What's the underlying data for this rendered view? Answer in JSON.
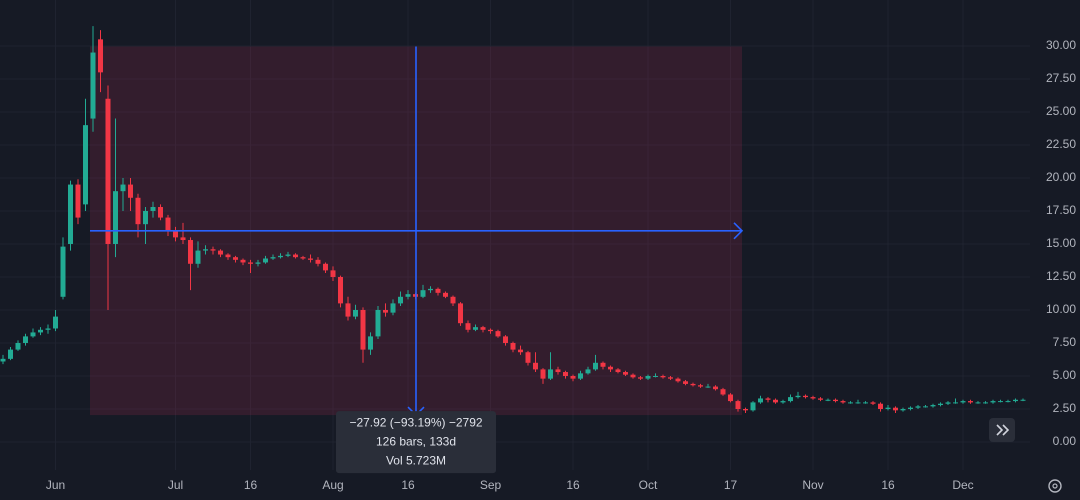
{
  "chart_data": {
    "type": "candlestick",
    "up_color": "#22ab94",
    "down_color": "#f23645",
    "ylim": [
      -2.12,
      33.48
    ],
    "yticks": [
      {
        "value": 0,
        "label": "0.00"
      },
      {
        "value": 2.5,
        "label": "2.50"
      },
      {
        "value": 5,
        "label": "5.00"
      },
      {
        "value": 7.5,
        "label": "7.50"
      },
      {
        "value": 10,
        "label": "10.00"
      },
      {
        "value": 12.5,
        "label": "12.50"
      },
      {
        "value": 15,
        "label": "15.00"
      },
      {
        "value": 17.5,
        "label": "17.50"
      },
      {
        "value": 20,
        "label": "20.00"
      },
      {
        "value": 22.5,
        "label": "22.50"
      },
      {
        "value": 25,
        "label": "25.00"
      },
      {
        "value": 27.5,
        "label": "27.50"
      },
      {
        "value": 30,
        "label": "30.00"
      }
    ],
    "grid": true,
    "categories": [
      null,
      null,
      null,
      null,
      null,
      null,
      null,
      "Jun",
      null,
      null,
      null,
      null,
      null,
      null,
      null,
      null,
      null,
      null,
      null,
      null,
      null,
      null,
      null,
      "Jul",
      null,
      null,
      null,
      null,
      null,
      null,
      null,
      null,
      null,
      "16",
      null,
      null,
      null,
      null,
      null,
      null,
      null,
      null,
      null,
      null,
      "Aug",
      null,
      null,
      null,
      null,
      null,
      null,
      null,
      null,
      null,
      "16",
      null,
      null,
      null,
      null,
      null,
      null,
      null,
      null,
      null,
      null,
      "Sep",
      null,
      null,
      null,
      null,
      null,
      null,
      null,
      null,
      null,
      null,
      "16",
      null,
      null,
      null,
      null,
      null,
      null,
      null,
      null,
      null,
      "Oct",
      null,
      null,
      null,
      null,
      null,
      null,
      null,
      null,
      null,
      null,
      "17",
      null,
      null,
      null,
      null,
      null,
      null,
      null,
      null,
      null,
      null,
      "Nov",
      null,
      null,
      null,
      null,
      null,
      null,
      null,
      null,
      null,
      "16",
      null,
      null,
      null,
      null,
      null,
      null,
      null,
      null,
      null,
      "Dec",
      null,
      null,
      null,
      null,
      null,
      null,
      null,
      null
    ],
    "series": [
      {
        "values": [
          [
            6.1,
            6.6,
            5.9,
            6.3
          ],
          [
            6.3,
            7.2,
            6.2,
            7.0
          ],
          [
            7.0,
            7.7,
            6.9,
            7.5
          ],
          [
            7.5,
            8.2,
            7.3,
            8.0
          ],
          [
            8.0,
            8.6,
            7.9,
            8.3
          ],
          [
            8.3,
            8.7,
            8.1,
            8.5
          ],
          [
            8.5,
            8.9,
            8.2,
            8.6
          ],
          [
            8.6,
            10.0,
            8.4,
            9.5
          ],
          [
            11.0,
            15.5,
            10.8,
            14.8
          ],
          [
            15.0,
            19.8,
            14.5,
            19.5
          ],
          [
            19.5,
            19.9,
            16.5,
            17.0
          ],
          [
            18.0,
            26.0,
            17.5,
            24.0
          ],
          [
            24.5,
            31.5,
            23.5,
            29.5
          ],
          [
            30.5,
            31.2,
            26.5,
            28.0
          ],
          [
            26.0,
            27.0,
            10.0,
            15.0
          ],
          [
            15.0,
            24.5,
            14.0,
            19.0
          ],
          [
            19.0,
            20.0,
            17.5,
            19.5
          ],
          [
            19.5,
            20.0,
            17.5,
            18.5
          ],
          [
            18.5,
            18.8,
            15.5,
            16.5
          ],
          [
            16.5,
            17.8,
            15.0,
            17.5
          ],
          [
            17.5,
            18.2,
            17.0,
            17.8
          ],
          [
            17.8,
            18.0,
            16.8,
            17.0
          ],
          [
            17.0,
            17.2,
            15.6,
            16.0
          ],
          [
            16.0,
            16.3,
            15.2,
            15.5
          ],
          [
            15.5,
            16.6,
            15.0,
            15.3
          ],
          [
            15.3,
            15.5,
            11.5,
            13.5
          ],
          [
            13.5,
            15.2,
            13.2,
            14.5
          ],
          [
            14.5,
            14.9,
            14.2,
            14.6
          ],
          [
            14.6,
            14.8,
            14.2,
            14.5
          ],
          [
            14.5,
            14.6,
            14.0,
            14.2
          ],
          [
            14.2,
            14.3,
            13.8,
            14.0
          ],
          [
            14.0,
            14.1,
            13.6,
            13.8
          ],
          [
            13.8,
            13.9,
            13.4,
            13.6
          ],
          [
            13.6,
            13.8,
            12.8,
            13.5
          ],
          [
            13.5,
            13.8,
            13.3,
            13.6
          ],
          [
            13.6,
            14.1,
            13.5,
            13.9
          ],
          [
            13.9,
            14.2,
            13.8,
            14.0
          ],
          [
            14.0,
            14.3,
            13.9,
            14.1
          ],
          [
            14.1,
            14.4,
            14.0,
            14.2
          ],
          [
            14.2,
            14.3,
            13.9,
            14.0
          ],
          [
            14.0,
            14.1,
            13.8,
            13.9
          ],
          [
            13.9,
            14.2,
            13.6,
            13.8
          ],
          [
            13.8,
            14.0,
            13.3,
            13.5
          ],
          [
            13.5,
            13.6,
            12.8,
            13.0
          ],
          [
            13.0,
            13.3,
            12.2,
            12.5
          ],
          [
            12.5,
            12.6,
            10.2,
            10.5
          ],
          [
            10.5,
            11.0,
            9.2,
            9.5
          ],
          [
            9.5,
            10.4,
            9.3,
            10.0
          ],
          [
            10.0,
            10.2,
            6.0,
            7.0
          ],
          [
            7.0,
            8.3,
            6.6,
            8.0
          ],
          [
            8.0,
            10.3,
            7.8,
            10.0
          ],
          [
            10.0,
            10.5,
            9.5,
            9.8
          ],
          [
            9.8,
            10.8,
            9.6,
            10.5
          ],
          [
            10.5,
            11.4,
            10.3,
            11.0
          ],
          [
            11.0,
            11.5,
            10.8,
            11.2
          ],
          [
            11.2,
            11.3,
            10.8,
            11.0
          ],
          [
            11.0,
            11.9,
            10.9,
            11.5
          ],
          [
            11.5,
            11.8,
            11.3,
            11.6
          ],
          [
            11.6,
            11.7,
            11.1,
            11.3
          ],
          [
            11.3,
            11.4,
            10.9,
            11.0
          ],
          [
            11.0,
            11.1,
            10.3,
            10.5
          ],
          [
            10.5,
            10.6,
            8.8,
            9.0
          ],
          [
            9.0,
            9.2,
            8.3,
            8.5
          ],
          [
            8.5,
            8.9,
            8.4,
            8.7
          ],
          [
            8.7,
            8.8,
            8.3,
            8.5
          ],
          [
            8.5,
            8.6,
            8.2,
            8.4
          ],
          [
            8.4,
            8.5,
            7.9,
            8.0
          ],
          [
            8.0,
            8.1,
            7.3,
            7.5
          ],
          [
            7.5,
            7.6,
            6.8,
            7.0
          ],
          [
            7.0,
            7.3,
            6.6,
            6.8
          ],
          [
            6.8,
            6.9,
            5.8,
            6.0
          ],
          [
            6.0,
            6.8,
            5.3,
            5.5
          ],
          [
            5.5,
            5.6,
            4.4,
            4.8
          ],
          [
            4.8,
            6.8,
            4.7,
            5.5
          ],
          [
            5.5,
            5.7,
            5.1,
            5.3
          ],
          [
            5.3,
            5.4,
            4.8,
            5.0
          ],
          [
            5.0,
            5.1,
            4.6,
            4.8
          ],
          [
            4.8,
            5.4,
            4.7,
            5.2
          ],
          [
            5.2,
            5.7,
            5.1,
            5.5
          ],
          [
            5.5,
            6.6,
            5.4,
            6.0
          ],
          [
            6.0,
            6.1,
            5.5,
            5.7
          ],
          [
            5.7,
            5.8,
            5.3,
            5.5
          ],
          [
            5.5,
            5.6,
            5.2,
            5.3
          ],
          [
            5.3,
            5.4,
            5.0,
            5.1
          ],
          [
            5.1,
            5.2,
            4.8,
            4.9
          ],
          [
            4.9,
            5.0,
            4.7,
            4.8
          ],
          [
            4.8,
            5.1,
            4.7,
            5.0
          ],
          [
            5.0,
            5.2,
            4.9,
            5.0
          ],
          [
            5.0,
            5.1,
            4.8,
            4.9
          ],
          [
            4.9,
            5.0,
            4.7,
            4.8
          ],
          [
            4.8,
            4.9,
            4.5,
            4.6
          ],
          [
            4.6,
            4.7,
            4.3,
            4.4
          ],
          [
            4.4,
            4.5,
            4.2,
            4.3
          ],
          [
            4.3,
            4.4,
            4.1,
            4.2
          ],
          [
            4.2,
            4.4,
            4.1,
            4.2
          ],
          [
            4.2,
            4.3,
            3.9,
            4.0
          ],
          [
            4.0,
            4.1,
            3.5,
            3.6
          ],
          [
            3.6,
            3.7,
            3.0,
            3.1
          ],
          [
            3.1,
            3.2,
            2.3,
            2.5
          ],
          [
            2.5,
            2.6,
            2.2,
            2.4
          ],
          [
            2.4,
            3.1,
            2.3,
            3.0
          ],
          [
            3.0,
            3.5,
            2.9,
            3.3
          ],
          [
            3.3,
            3.4,
            3.0,
            3.2
          ],
          [
            3.2,
            3.3,
            2.9,
            3.0
          ],
          [
            3.0,
            3.2,
            2.9,
            3.1
          ],
          [
            3.1,
            3.6,
            3.0,
            3.4
          ],
          [
            3.4,
            3.8,
            3.3,
            3.5
          ],
          [
            3.5,
            3.6,
            3.3,
            3.4
          ],
          [
            3.4,
            3.5,
            3.2,
            3.3
          ],
          [
            3.3,
            3.4,
            3.1,
            3.2
          ],
          [
            3.2,
            3.3,
            3.1,
            3.2
          ],
          [
            3.2,
            3.3,
            3.0,
            3.1
          ],
          [
            3.1,
            3.2,
            2.9,
            3.0
          ],
          [
            3.0,
            3.1,
            2.9,
            3.0
          ],
          [
            3.0,
            3.2,
            2.9,
            3.0
          ],
          [
            3.0,
            3.1,
            2.9,
            3.0
          ],
          [
            3.0,
            3.1,
            2.8,
            2.9
          ],
          [
            2.9,
            3.0,
            2.3,
            2.5
          ],
          [
            2.5,
            2.8,
            2.4,
            2.6
          ],
          [
            2.6,
            2.7,
            2.2,
            2.4
          ],
          [
            2.4,
            2.6,
            2.3,
            2.5
          ],
          [
            2.5,
            2.7,
            2.4,
            2.6
          ],
          [
            2.6,
            2.8,
            2.5,
            2.7
          ],
          [
            2.7,
            2.8,
            2.6,
            2.7
          ],
          [
            2.7,
            2.9,
            2.6,
            2.8
          ],
          [
            2.8,
            3.0,
            2.7,
            2.9
          ],
          [
            2.9,
            3.1,
            2.8,
            3.0
          ],
          [
            3.0,
            3.3,
            2.9,
            3.0
          ],
          [
            3.0,
            3.2,
            2.9,
            3.1
          ],
          [
            3.1,
            3.2,
            2.9,
            3.0
          ],
          [
            3.0,
            3.1,
            2.9,
            3.0
          ],
          [
            3.0,
            3.1,
            2.9,
            3.0
          ],
          [
            3.0,
            3.2,
            2.9,
            3.1
          ],
          [
            3.1,
            3.2,
            3.0,
            3.1
          ],
          [
            3.1,
            3.2,
            3.0,
            3.1
          ],
          [
            3.1,
            3.3,
            3.0,
            3.2
          ],
          [
            3.2,
            3.3,
            3.1,
            3.2
          ]
        ]
      }
    ],
    "measure": {
      "start_price": 29.96,
      "end_price": 2.04,
      "color": "#2962ff",
      "labels": [
        "−27.92 (−93.19%) −2792",
        "126 bars, 133d",
        "Vol 5.723M"
      ]
    }
  }
}
